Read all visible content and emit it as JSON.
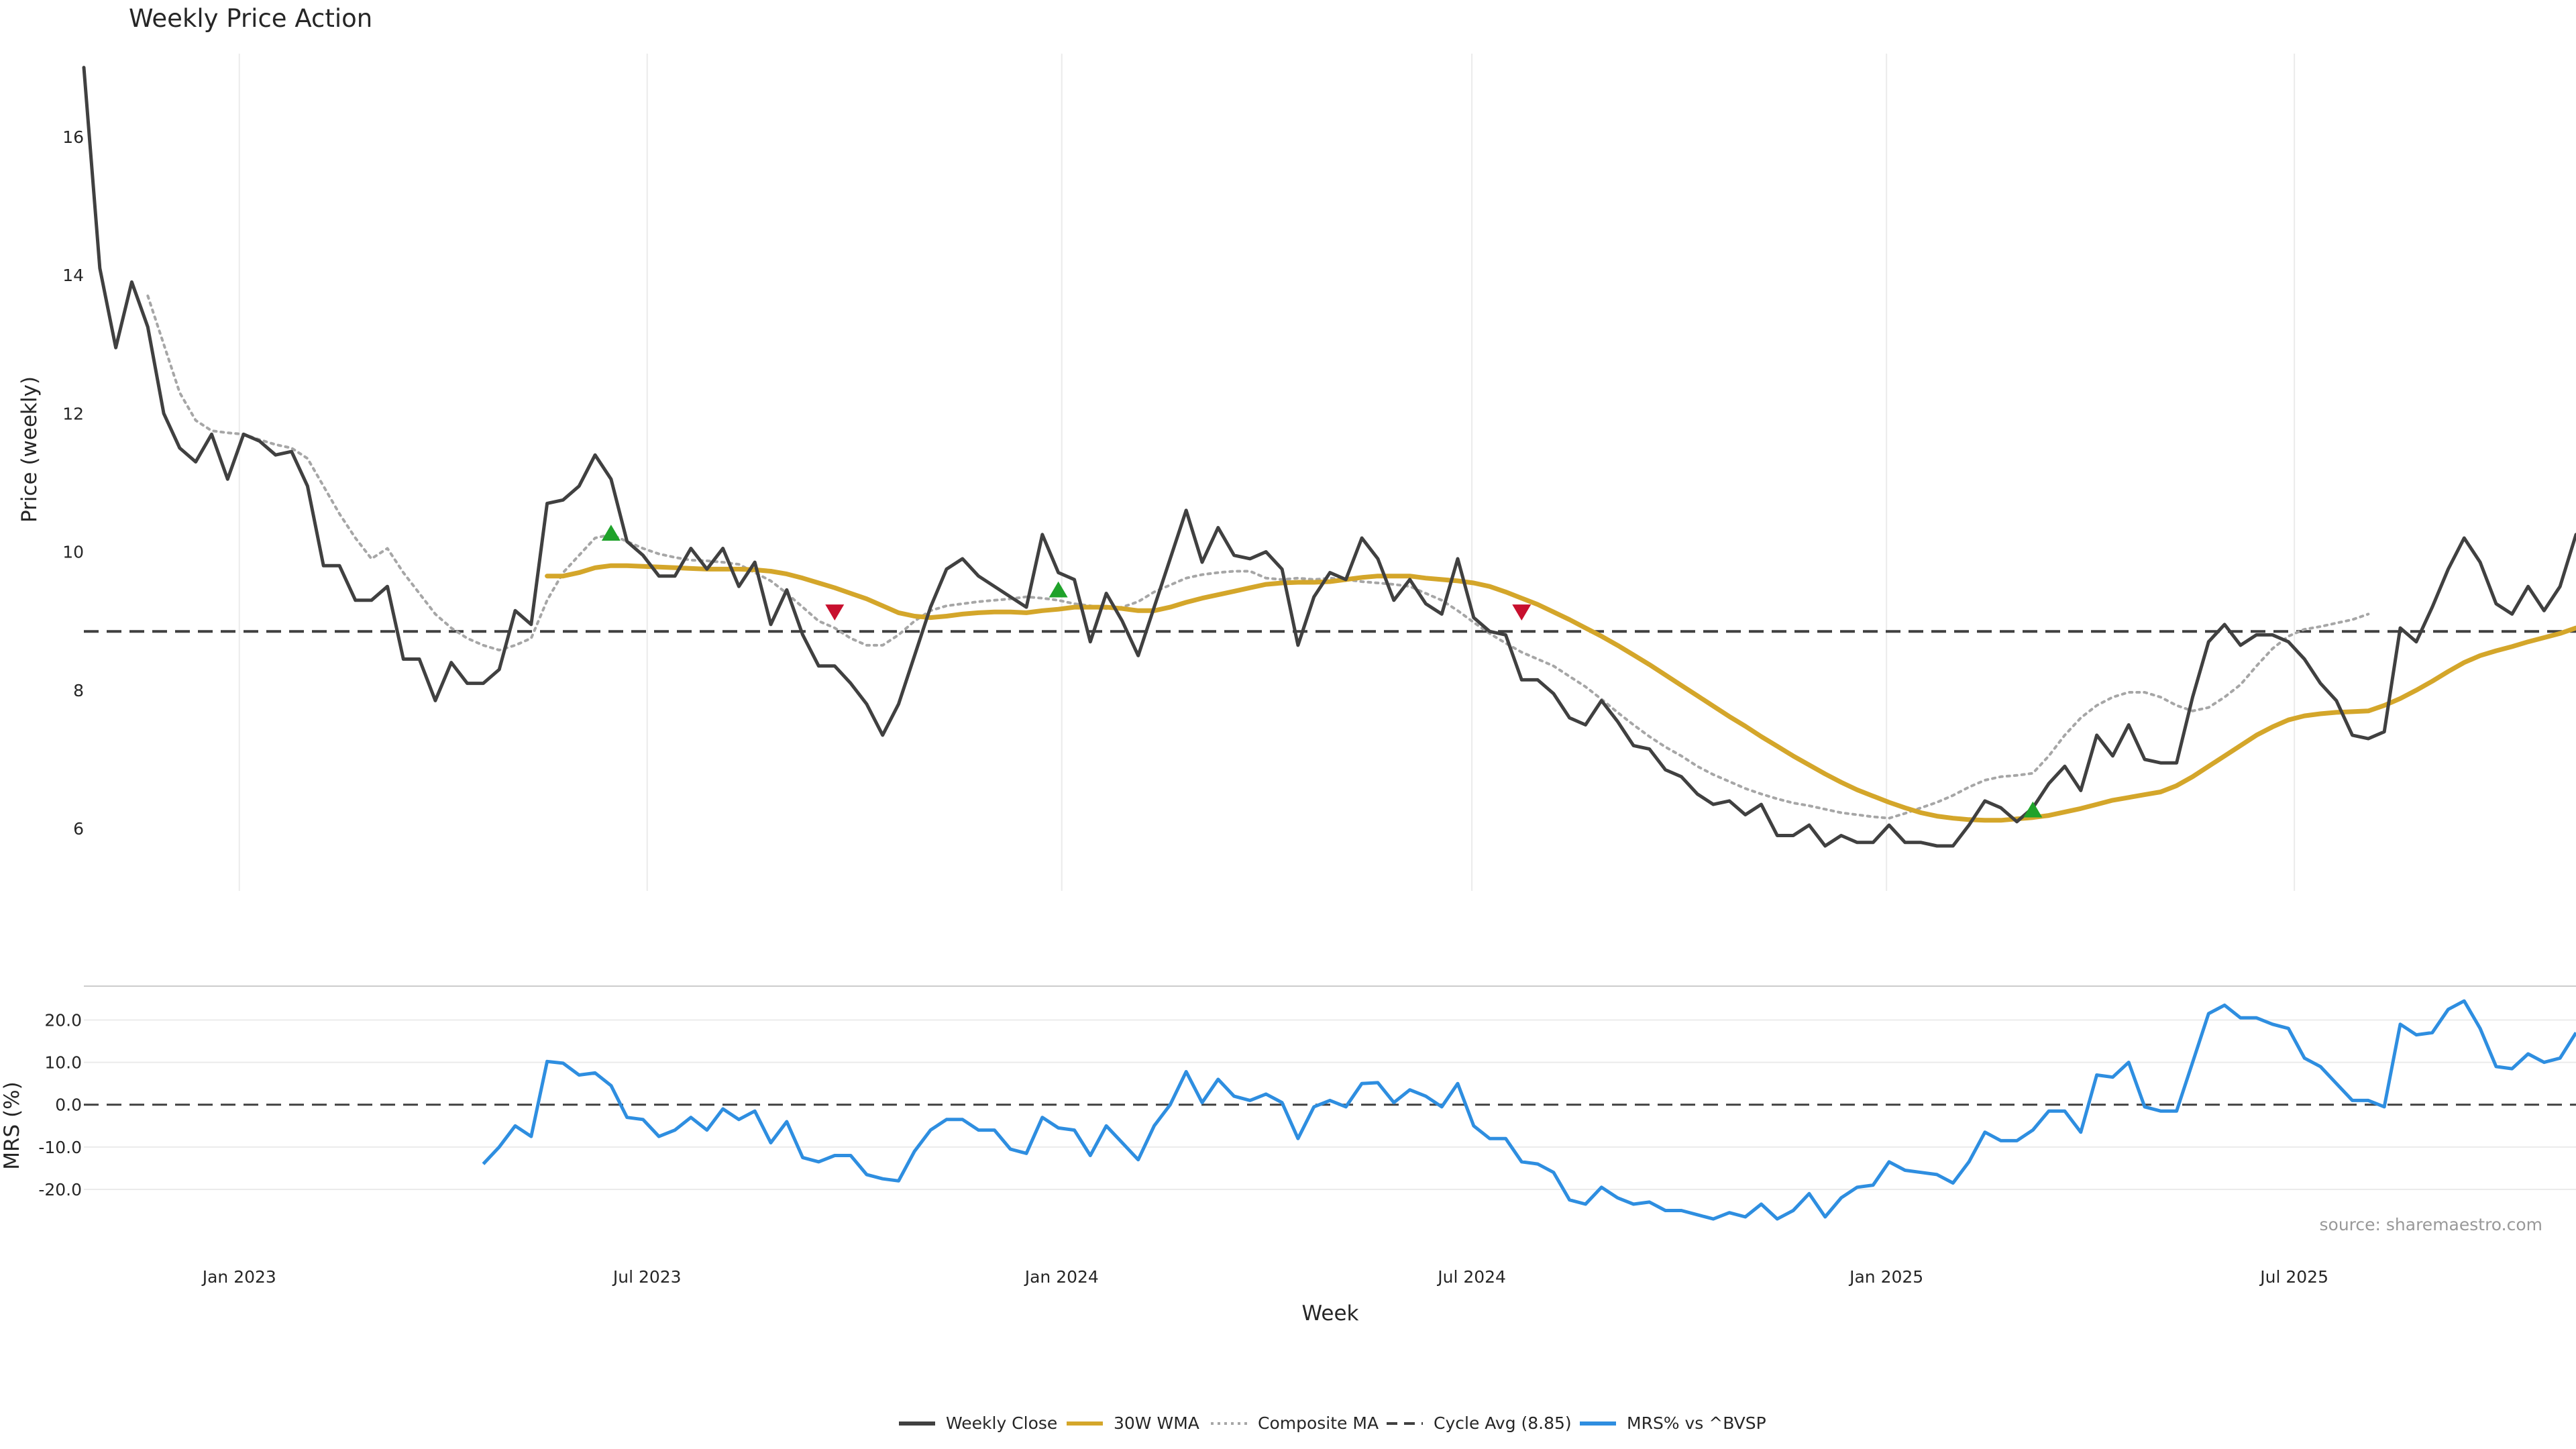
{
  "chart_data": [
    {
      "type": "line",
      "title": "Weekly Price Action",
      "ylabel": "Price (weekly)",
      "xlabel": "",
      "ylim": [
        5.1,
        17.2
      ],
      "yticks": [
        6,
        8,
        10,
        12,
        14,
        16
      ],
      "ytick_labels": [
        "6",
        "8",
        "10",
        "12",
        "14",
        "16"
      ],
      "x_range": [
        "2022-10-24",
        "2025-11-03"
      ],
      "grid": "vertical",
      "series": [
        {
          "name": "Weekly Close",
          "color": "#404040",
          "style": "solid",
          "values": [
            17.0,
            14.1,
            12.95,
            13.9,
            13.25,
            12.0,
            11.5,
            11.3,
            11.7,
            11.05,
            11.7,
            11.6,
            11.4,
            11.45,
            10.95,
            9.8,
            9.8,
            9.3,
            9.3,
            9.5,
            8.45,
            8.45,
            7.85,
            8.4,
            8.1,
            8.1,
            8.3,
            9.15,
            8.95,
            10.7,
            10.75,
            10.95,
            11.4,
            11.05,
            10.15,
            9.95,
            9.65,
            9.65,
            10.05,
            9.75,
            10.05,
            9.5,
            9.85,
            8.95,
            9.45,
            8.8,
            8.35,
            8.35,
            8.1,
            7.8,
            7.35,
            7.8,
            8.5,
            9.2,
            9.75,
            9.9,
            9.65,
            9.5,
            9.35,
            9.2,
            10.25,
            9.7,
            9.6,
            8.7,
            9.4,
            9.0,
            8.5,
            9.2,
            9.9,
            10.6,
            9.85,
            10.35,
            9.95,
            9.9,
            10.0,
            9.75,
            8.65,
            9.35,
            9.7,
            9.6,
            10.2,
            9.9,
            9.3,
            9.6,
            9.25,
            9.1,
            9.9,
            9.05,
            8.85,
            8.8,
            8.15,
            8.15,
            7.95,
            7.6,
            7.5,
            7.85,
            7.55,
            7.2,
            7.15,
            6.85,
            6.75,
            6.5,
            6.35,
            6.4,
            6.2,
            6.35,
            5.9,
            5.9,
            6.05,
            5.75,
            5.9,
            5.8,
            5.8,
            6.05,
            5.8,
            5.8,
            5.75,
            5.75,
            6.05,
            6.4,
            6.3,
            6.1,
            6.3,
            6.65,
            6.9,
            6.55,
            7.35,
            7.05,
            7.5,
            7.0,
            6.95,
            6.95,
            7.9,
            8.7,
            8.95,
            8.65,
            8.8,
            8.8,
            8.7,
            8.45,
            8.1,
            7.85,
            7.35,
            7.3,
            7.4,
            8.9,
            8.7,
            9.2,
            9.75,
            10.2,
            9.85,
            9.25,
            9.1,
            9.5,
            9.15,
            9.5,
            10.25
          ]
        },
        {
          "name": "30W WMA",
          "color": "#D4A62A",
          "style": "solid",
          "start_index": 29,
          "values": [
            9.65,
            9.65,
            9.7,
            9.77,
            9.8,
            9.8,
            9.79,
            9.78,
            9.77,
            9.76,
            9.75,
            9.75,
            9.75,
            9.74,
            9.72,
            9.68,
            9.62,
            9.55,
            9.48,
            9.4,
            9.32,
            9.22,
            9.12,
            9.07,
            9.05,
            9.07,
            9.1,
            9.12,
            9.13,
            9.13,
            9.12,
            9.15,
            9.17,
            9.2,
            9.2,
            9.2,
            9.18,
            9.15,
            9.15,
            9.2,
            9.27,
            9.33,
            9.38,
            9.43,
            9.48,
            9.53,
            9.55,
            9.56,
            9.56,
            9.57,
            9.6,
            9.63,
            9.65,
            9.65,
            9.65,
            9.62,
            9.6,
            9.58,
            9.55,
            9.5,
            9.42,
            9.33,
            9.24,
            9.13,
            9.02,
            8.9,
            8.78,
            8.65,
            8.51,
            8.37,
            8.22,
            8.07,
            7.92,
            7.77,
            7.62,
            7.48,
            7.33,
            7.19,
            7.05,
            6.92,
            6.79,
            6.67,
            6.56,
            6.47,
            6.38,
            6.3,
            6.23,
            6.18,
            6.15,
            6.13,
            6.12,
            6.12,
            6.14,
            6.16,
            6.19,
            6.24,
            6.29,
            6.35,
            6.41,
            6.45,
            6.49,
            6.53,
            6.62,
            6.75,
            6.9,
            7.05,
            7.2,
            7.35,
            7.47,
            7.57,
            7.63,
            7.66,
            7.68,
            7.69,
            7.7,
            7.78,
            7.88,
            8.0,
            8.13,
            8.27,
            8.4,
            8.5,
            8.57,
            8.63,
            8.7,
            8.76,
            8.82,
            8.9
          ]
        },
        {
          "name": "Composite MA",
          "color": "#A6A6A6",
          "style": "dotted",
          "start_index": 4,
          "values": [
            13.7,
            13.0,
            12.3,
            11.9,
            11.75,
            11.72,
            11.7,
            11.62,
            11.55,
            11.5,
            11.35,
            10.95,
            10.55,
            10.2,
            9.9,
            10.05,
            9.7,
            9.4,
            9.1,
            8.9,
            8.75,
            8.65,
            8.58,
            8.65,
            8.75,
            9.3,
            9.7,
            9.95,
            10.2,
            10.25,
            10.15,
            10.05,
            9.97,
            9.92,
            9.88,
            9.87,
            9.85,
            9.82,
            9.7,
            9.58,
            9.4,
            9.2,
            9.0,
            8.9,
            8.75,
            8.65,
            8.65,
            8.8,
            9.0,
            9.15,
            9.22,
            9.25,
            9.28,
            9.3,
            9.32,
            9.35,
            9.33,
            9.3,
            9.25,
            9.22,
            9.18,
            9.2,
            9.28,
            9.42,
            9.52,
            9.62,
            9.67,
            9.7,
            9.72,
            9.72,
            9.62,
            9.6,
            9.62,
            9.6,
            9.62,
            9.6,
            9.57,
            9.55,
            9.53,
            9.5,
            9.4,
            9.3,
            9.15,
            8.98,
            8.82,
            8.68,
            8.55,
            8.45,
            8.35,
            8.2,
            8.05,
            7.87,
            7.68,
            7.5,
            7.33,
            7.18,
            7.05,
            6.9,
            6.78,
            6.68,
            6.58,
            6.5,
            6.43,
            6.37,
            6.33,
            6.28,
            6.23,
            6.2,
            6.17,
            6.15,
            6.22,
            6.3,
            6.38,
            6.48,
            6.6,
            6.7,
            6.75,
            6.77,
            6.8,
            7.05,
            7.35,
            7.6,
            7.78,
            7.9,
            7.97,
            7.97,
            7.9,
            7.78,
            7.7,
            7.75,
            7.9,
            8.08,
            8.35,
            8.6,
            8.78,
            8.88,
            8.92,
            8.97,
            9.02,
            9.1
          ]
        }
      ],
      "hlines": [
        {
          "name": "Cycle Avg (8.85)",
          "value": 8.85,
          "color": "#404040",
          "style": "dashed"
        }
      ],
      "markers": [
        {
          "type": "buy",
          "index": 33,
          "value": 10.27,
          "color": "#1FA22A"
        },
        {
          "type": "sell",
          "index": 47,
          "value": 9.13,
          "color": "#C8102E"
        },
        {
          "type": "buy",
          "index": 61,
          "value": 9.45,
          "color": "#1FA22A"
        },
        {
          "type": "sell",
          "index": 90,
          "value": 9.13,
          "color": "#C8102E"
        },
        {
          "type": "buy",
          "index": 122,
          "value": 6.27,
          "color": "#1FA22A"
        }
      ]
    },
    {
      "type": "line",
      "title": "",
      "ylabel": "MRS (%)",
      "xlabel": "Week",
      "ylim": [
        -33,
        28
      ],
      "yticks": [
        20,
        10,
        0,
        -10,
        -20
      ],
      "ytick_labels": [
        "20.0",
        "10.0",
        "0.0",
        "-10.0",
        "-20.0"
      ],
      "x_range": [
        "2022-10-24",
        "2025-11-03"
      ],
      "xticks": [
        "2023-01-01",
        "2023-07-01",
        "2024-01-01",
        "2024-07-01",
        "2025-01-01",
        "2025-07-01"
      ],
      "xtick_labels": [
        "Jan 2023",
        "Jul 2023",
        "Jan 2024",
        "Jul 2024",
        "Jan 2025",
        "Jul 2025"
      ],
      "grid": "horizontal",
      "series": [
        {
          "name": "MRS% vs ^BVSP",
          "color": "#2E8EE0",
          "style": "solid",
          "start_index": 25,
          "values": [
            -14.0,
            -10.0,
            -5.0,
            -7.5,
            10.2,
            9.8,
            7.0,
            7.5,
            4.5,
            -3.0,
            -3.5,
            -7.5,
            -6.0,
            -3.0,
            -6.0,
            -1.0,
            -3.5,
            -1.5,
            -9.0,
            -4.0,
            -12.5,
            -13.5,
            -12.0,
            -12.0,
            -16.5,
            -17.5,
            -18.0,
            -11.0,
            -6.0,
            -3.5,
            -3.5,
            -6.0,
            -6.0,
            -10.5,
            -11.5,
            -3.0,
            -5.5,
            -6.0,
            -12.0,
            -5.0,
            -9.0,
            -13.0,
            -5.0,
            0.0,
            7.8,
            0.5,
            6.0,
            2.0,
            1.0,
            2.5,
            0.5,
            -8.0,
            -0.5,
            1.0,
            -0.5,
            5.0,
            5.2,
            0.5,
            3.5,
            2.0,
            -0.5,
            5.0,
            -5.0,
            -8.0,
            -8.0,
            -13.5,
            -14.0,
            -16.0,
            -22.5,
            -23.5,
            -19.5,
            -22.0,
            -23.5,
            -23.0,
            -25.0,
            -25.0,
            -26.0,
            -27.0,
            -25.5,
            -26.5,
            -23.5,
            -27.0,
            -25.0,
            -21.0,
            -26.5,
            -22.0,
            -19.5,
            -19.0,
            -13.5,
            -15.5,
            -16.0,
            -16.5,
            -18.5,
            -13.5,
            -6.5,
            -8.5,
            -8.5,
            -6.0,
            -1.5,
            -1.5,
            -6.5,
            7.0,
            6.5,
            10.0,
            -0.5,
            -1.5,
            -1.5,
            10.0,
            21.5,
            23.5,
            20.5,
            20.5,
            19.0,
            18.0,
            11.0,
            9.0,
            5.0,
            1.0,
            1.0,
            -0.5,
            19.0,
            16.5,
            17.0,
            22.5,
            24.5,
            18.0,
            9.0,
            8.5,
            12.0,
            10.0,
            11.0,
            17.0
          ]
        }
      ],
      "hlines": [
        {
          "name": "zero",
          "value": 0,
          "color": "#404040",
          "style": "dashed"
        }
      ],
      "annotation": "source: sharemaestro.com"
    }
  ],
  "legend": {
    "placement": "bottom-center",
    "items": [
      {
        "label": "Weekly Close",
        "color": "#404040",
        "style": "solid"
      },
      {
        "label": "30W WMA",
        "color": "#D4A62A",
        "style": "solid"
      },
      {
        "label": "Composite MA",
        "color": "#A6A6A6",
        "style": "dotted"
      },
      {
        "label": "Cycle Avg (8.85)",
        "color": "#404040",
        "style": "dashed"
      },
      {
        "label": "MRS% vs ^BVSP",
        "color": "#2E8EE0",
        "style": "solid"
      }
    ]
  }
}
